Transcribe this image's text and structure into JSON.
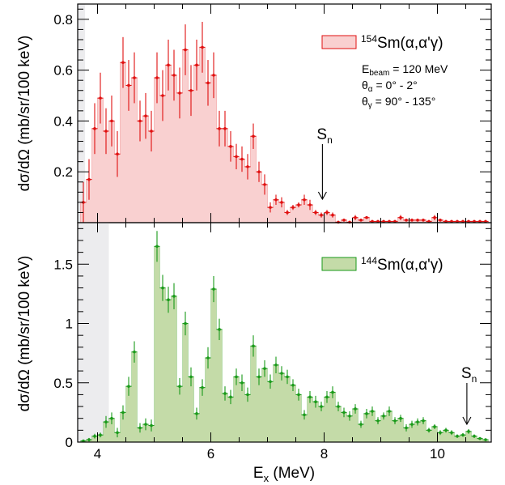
{
  "colors": {
    "top_fill": "#f9d0d0",
    "top_line": "#e01010",
    "bottom_fill": "#c4dba8",
    "bottom_line": "#1a9a1a",
    "shade": "#ececee"
  },
  "chart_data": [
    {
      "type": "bar",
      "ylabel": "dσ/dΩ (mb/sr/100 keV)",
      "xlim": [
        3.65,
        10.95
      ],
      "ylim": [
        0,
        0.86
      ],
      "x_ticks": [
        4,
        6,
        8,
        10
      ],
      "y_ticks": [
        0.2,
        0.4,
        0.6,
        0.8
      ],
      "y_tick_labels": [
        "0.2",
        "0.4",
        "0.6",
        "0.8"
      ],
      "shaded_region": [
        3.65,
        3.78
      ],
      "legend": {
        "isotope_mass": "154",
        "label": "Sm(α,α'γ)"
      },
      "annotations": [
        {
          "base": "E",
          "sub": "beam",
          "rest": " = 120 MeV"
        },
        {
          "base": "θ",
          "sub": "α",
          "rest": " = 0° - 2°"
        },
        {
          "base": "θ",
          "sub": "γ",
          "rest": " = 90° - 135°"
        }
      ],
      "marker": {
        "base": "S",
        "sub": "n",
        "x": 7.97
      },
      "series": [
        {
          "x": [
            3.75,
            3.85,
            3.95,
            4.05,
            4.15,
            4.25,
            4.35,
            4.45,
            4.55,
            4.65,
            4.75,
            4.85,
            4.95,
            5.05,
            5.15,
            5.25,
            5.35,
            5.45,
            5.55,
            5.65,
            5.75,
            5.85,
            5.95,
            6.05,
            6.15,
            6.25,
            6.35,
            6.45,
            6.55,
            6.65,
            6.75,
            6.85,
            6.95,
            7.05,
            7.15,
            7.25,
            7.35,
            7.45,
            7.55,
            7.65,
            7.75,
            7.85,
            7.95,
            8.05,
            8.15,
            8.25,
            8.35,
            8.45,
            8.55,
            8.65,
            8.75,
            8.85,
            8.95,
            9.05,
            9.15,
            9.25,
            9.35,
            9.45,
            9.55,
            9.65,
            9.75,
            9.85,
            9.95,
            10.05,
            10.15,
            10.25,
            10.35,
            10.45,
            10.55,
            10.65,
            10.75,
            10.85
          ],
          "values": [
            0.08,
            0.17,
            0.37,
            0.49,
            0.36,
            0.4,
            0.27,
            0.63,
            0.54,
            0.57,
            0.4,
            0.42,
            0.36,
            0.57,
            0.5,
            0.62,
            0.58,
            0.51,
            0.68,
            0.52,
            0.62,
            0.69,
            0.55,
            0.58,
            0.37,
            0.37,
            0.3,
            0.26,
            0.25,
            0.22,
            0.34,
            0.2,
            0.15,
            0.06,
            0.09,
            0.08,
            0.04,
            0.06,
            0.07,
            0.09,
            0.07,
            0.04,
            0.03,
            0.04,
            0.03,
            0.002,
            0.01,
            0.002,
            0.02,
            0.01,
            0.02,
            0.005,
            0.005,
            0.005,
            0.005,
            0.005,
            0.02,
            0.01,
            0.01,
            0.01,
            0.01,
            0.005,
            0.02,
            0.01,
            0.005,
            0.005,
            0.005,
            0.005,
            0.005,
            0.005,
            0.005,
            0.005
          ],
          "errors": [
            0.08,
            0.08,
            0.1,
            0.1,
            0.09,
            0.1,
            0.09,
            0.1,
            0.1,
            0.1,
            0.08,
            0.09,
            0.08,
            0.1,
            0.1,
            0.1,
            0.1,
            0.1,
            0.1,
            0.1,
            0.1,
            0.1,
            0.09,
            0.09,
            0.07,
            0.07,
            0.06,
            0.05,
            0.05,
            0.05,
            0.05,
            0.04,
            0.04,
            0.02,
            0.02,
            0.02,
            0.01,
            0.01,
            0.01,
            0.02,
            0.02,
            0.01,
            0.01,
            0.01,
            0.01,
            0.005,
            0.005,
            0.005,
            0.01,
            0.005,
            0.005,
            0.005,
            0.005,
            0.005,
            0.005,
            0.005,
            0.01,
            0.005,
            0.005,
            0.005,
            0.005,
            0.005,
            0.01,
            0.005,
            0.005,
            0.005,
            0.005,
            0.005,
            0.005,
            0.005,
            0.005,
            0.005
          ]
        }
      ]
    },
    {
      "type": "bar",
      "xlabel": "E<sub>x</sub> (MeV)",
      "ylabel": "dσ/dΩ (mb/sr/100 keV)",
      "xlim": [
        3.65,
        10.95
      ],
      "ylim": [
        0,
        1.85
      ],
      "x_ticks": [
        4,
        6,
        8,
        10
      ],
      "x_tick_labels": [
        "4",
        "6",
        "8",
        "10"
      ],
      "y_ticks": [
        0,
        0.5,
        1,
        1.5
      ],
      "y_tick_labels": [
        "0",
        "0.5",
        "1",
        "1.5"
      ],
      "shaded_region": [
        3.65,
        4.2
      ],
      "legend": {
        "isotope_mass": "144",
        "label": "Sm(α,α'γ)"
      },
      "marker": {
        "base": "S",
        "sub": "n",
        "x": 10.52
      },
      "series": [
        {
          "x": [
            3.75,
            3.85,
            3.95,
            4.05,
            4.15,
            4.25,
            4.35,
            4.45,
            4.55,
            4.65,
            4.75,
            4.85,
            4.95,
            5.05,
            5.15,
            5.25,
            5.35,
            5.45,
            5.55,
            5.65,
            5.75,
            5.85,
            5.95,
            6.05,
            6.15,
            6.25,
            6.35,
            6.45,
            6.55,
            6.65,
            6.75,
            6.85,
            6.95,
            7.05,
            7.15,
            7.25,
            7.35,
            7.45,
            7.55,
            7.65,
            7.75,
            7.85,
            7.95,
            8.05,
            8.15,
            8.25,
            8.35,
            8.45,
            8.55,
            8.65,
            8.75,
            8.85,
            8.95,
            9.05,
            9.15,
            9.25,
            9.35,
            9.45,
            9.55,
            9.65,
            9.75,
            9.85,
            9.95,
            10.05,
            10.15,
            10.25,
            10.35,
            10.45,
            10.55,
            10.65,
            10.75,
            10.85
          ],
          "values": [
            0.01,
            0.02,
            0.05,
            0.06,
            0.17,
            0.2,
            0.08,
            0.25,
            0.47,
            0.76,
            0.12,
            0.15,
            0.14,
            1.65,
            1.3,
            1.2,
            1.23,
            0.47,
            1.0,
            0.55,
            0.24,
            0.46,
            0.71,
            1.29,
            0.95,
            0.41,
            0.38,
            0.55,
            0.5,
            0.4,
            0.81,
            0.55,
            0.62,
            0.51,
            0.65,
            0.58,
            0.55,
            0.48,
            0.4,
            0.23,
            0.38,
            0.34,
            0.3,
            0.38,
            0.42,
            0.3,
            0.25,
            0.22,
            0.28,
            0.15,
            0.24,
            0.26,
            0.18,
            0.22,
            0.26,
            0.18,
            0.2,
            0.12,
            0.15,
            0.17,
            0.18,
            0.1,
            0.13,
            0.08,
            0.1,
            0.08,
            0.05,
            0.06,
            0.09,
            0.05,
            0.03,
            0.02
          ],
          "errors": [
            0.01,
            0.015,
            0.02,
            0.02,
            0.05,
            0.05,
            0.04,
            0.06,
            0.08,
            0.09,
            0.04,
            0.05,
            0.05,
            0.13,
            0.11,
            0.11,
            0.11,
            0.07,
            0.1,
            0.08,
            0.05,
            0.07,
            0.09,
            0.11,
            0.09,
            0.06,
            0.06,
            0.07,
            0.07,
            0.06,
            0.09,
            0.07,
            0.07,
            0.06,
            0.07,
            0.06,
            0.06,
            0.05,
            0.05,
            0.04,
            0.05,
            0.05,
            0.04,
            0.05,
            0.05,
            0.04,
            0.04,
            0.04,
            0.04,
            0.03,
            0.04,
            0.04,
            0.03,
            0.03,
            0.04,
            0.03,
            0.03,
            0.03,
            0.03,
            0.03,
            0.03,
            0.02,
            0.02,
            0.02,
            0.02,
            0.02,
            0.015,
            0.015,
            0.02,
            0.015,
            0.01,
            0.01
          ]
        }
      ]
    }
  ]
}
